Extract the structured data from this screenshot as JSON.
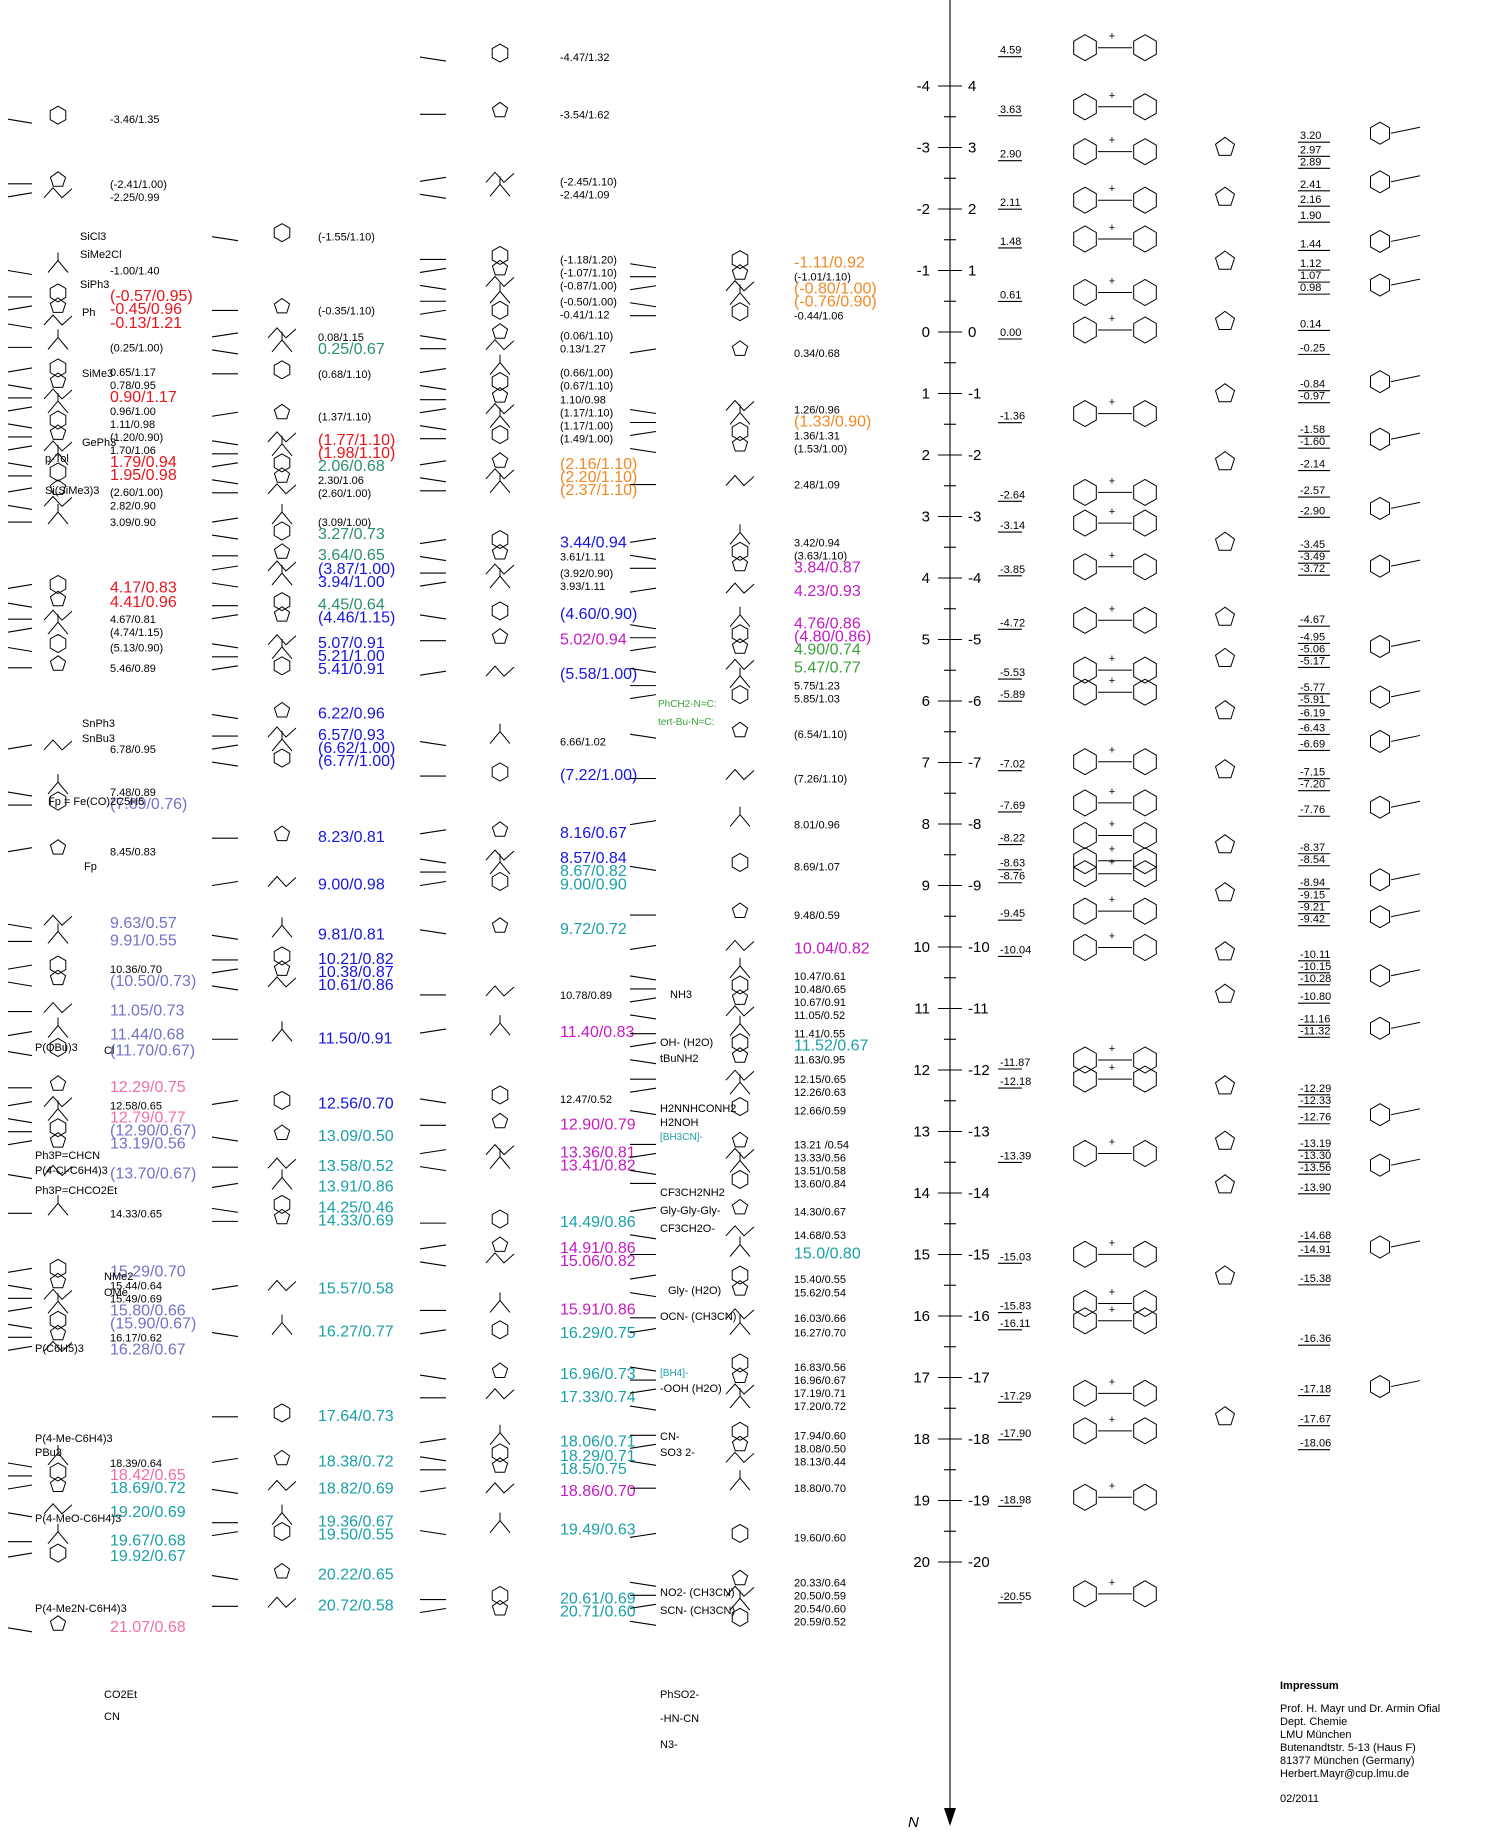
{
  "axes": {
    "n_label": "N",
    "n_ticks": [
      "-4",
      "-3",
      "-2",
      "-1",
      "0",
      "1",
      "2",
      "3",
      "4",
      "5",
      "6",
      "7",
      "8",
      "9",
      "10",
      "11",
      "12",
      "13",
      "14",
      "15",
      "16",
      "17",
      "18",
      "19",
      "20"
    ],
    "e_ticks": [
      "4",
      "3",
      "2",
      "1",
      "0",
      "-1",
      "-2",
      "-3",
      "-4",
      "-5",
      "-6",
      "-7",
      "-8",
      "-9",
      "-10",
      "-11",
      "-12",
      "-13",
      "-14",
      "-15",
      "-16",
      "-17",
      "-18",
      "-19",
      "-20"
    ]
  },
  "col1": [
    {
      "v": "-3.46/1.35",
      "c": "t"
    },
    {
      "v": "(-2.41/1.00)",
      "c": "t"
    },
    {
      "v": "-2.25/0.99",
      "c": "t"
    },
    {
      "v": "-1.00/1.40",
      "c": "t"
    },
    {
      "v": "(-0.57/0.95)",
      "c": "red"
    },
    {
      "v": "-0.45/0.96",
      "c": "red"
    },
    {
      "v": "-0.13/1.21",
      "c": "red"
    },
    {
      "v": "(0.25/1.00)",
      "c": "t"
    },
    {
      "v": "0.65/1.17",
      "c": "t"
    },
    {
      "v": "0.78/0.95",
      "c": "t"
    },
    {
      "v": "0.90/1.17",
      "c": "red"
    },
    {
      "v": "0.96/1.00",
      "c": "t"
    },
    {
      "v": "1.11/0.98",
      "c": "t"
    },
    {
      "v": "(1.20/0.90)",
      "c": "t"
    },
    {
      "v": "1.70/1.06",
      "c": "t"
    },
    {
      "v": "1.79/0.94",
      "c": "red"
    },
    {
      "v": "1.95/0.98",
      "c": "red"
    },
    {
      "v": "(2.60/1.00)",
      "c": "t"
    },
    {
      "v": "2.82/0.90",
      "c": "t"
    },
    {
      "v": "3.09/0.90",
      "c": "t"
    },
    {
      "v": "4.17/0.83",
      "c": "red"
    },
    {
      "v": "4.41/0.96",
      "c": "red"
    },
    {
      "v": "4.67/0.81",
      "c": "t"
    },
    {
      "v": "(4.74/1.15)",
      "c": "t"
    },
    {
      "v": "(5.13/0.90)",
      "c": "t"
    },
    {
      "v": "5.46/0.89",
      "c": "t"
    },
    {
      "v": "6.78/0.95",
      "c": "t"
    },
    {
      "v": "7.48/0.89",
      "c": "t"
    },
    {
      "v": "(7.69/0.76)",
      "c": "lav"
    },
    {
      "v": "8.45/0.83",
      "c": "t"
    },
    {
      "v": "9.63/0.57",
      "c": "lav"
    },
    {
      "v": "9.91/0.55",
      "c": "lav"
    },
    {
      "v": "10.36/0.70",
      "c": "t"
    },
    {
      "v": "(10.50/0.73)",
      "c": "lav"
    },
    {
      "v": "11.05/0.73",
      "c": "lav"
    },
    {
      "v": "11.44/0.68",
      "c": "lav"
    },
    {
      "v": "(11.70/0.67)",
      "c": "lav"
    },
    {
      "v": "12.29/0.75",
      "c": "pnk"
    },
    {
      "v": "12.58/0.65",
      "c": "t"
    },
    {
      "v": "12.79/0.77",
      "c": "pnk"
    },
    {
      "v": "(12.90/0.67)",
      "c": "lav"
    },
    {
      "v": "13.19/0.56",
      "c": "lav"
    },
    {
      "v": "(13.70/0.67)",
      "c": "lav"
    },
    {
      "v": "14.33/0.65",
      "c": "t"
    },
    {
      "v": "15.29/0.70",
      "c": "lav"
    },
    {
      "v": "15.44/0.64",
      "c": "t"
    },
    {
      "v": "15.49/0.69",
      "c": "t"
    },
    {
      "v": "15.80/0.66",
      "c": "lav"
    },
    {
      "v": "(15.90/0.67)",
      "c": "lav"
    },
    {
      "v": "16.17/0.62",
      "c": "t"
    },
    {
      "v": "16.28/0.67",
      "c": "lav"
    },
    {
      "v": "18.39/0.64",
      "c": "t"
    },
    {
      "v": "18.42/0.65",
      "c": "pnk"
    },
    {
      "v": "18.69/0.72",
      "c": "tea"
    },
    {
      "v": "19.20/0.69",
      "c": "tea"
    },
    {
      "v": "19.67/0.68",
      "c": "tea"
    },
    {
      "v": "19.92/0.67",
      "c": "tea"
    },
    {
      "v": "21.07/0.68",
      "c": "pnk"
    }
  ],
  "col1_labels": [
    "P(OBu)3",
    "Ph3P=CHCN",
    "P(4-Cl-C6H4)3",
    "Ph3P=CHCO2Et",
    "P(C6H5)3",
    "P(4-Me-C6H4)3",
    "PBu3",
    "P(4-MeO-C6H4)3",
    "P(4-Me2N-C6H4)3",
    "Fp = Fe(CO)2C5H5",
    "SiCl3",
    "SiMe2Cl",
    "SiPh3",
    "Ph",
    "SiMe3",
    "GePh3",
    "p-Tol",
    "Si(SiMe3)3",
    "SnPh3",
    "SnBu3",
    "Fp",
    "Cl",
    "NMe2",
    "OMe",
    "CN",
    "CO2Et"
  ],
  "col2": [
    {
      "v": "(-1.55/1.10)",
      "c": "t"
    },
    {
      "v": "(-0.35/1.10)",
      "c": "t"
    },
    {
      "v": "0.08/1.15",
      "c": "t"
    },
    {
      "v": "0.25/0.67",
      "c": "gtl"
    },
    {
      "v": "(0.68/1.10)",
      "c": "t"
    },
    {
      "v": "(1.37/1.10)",
      "c": "t"
    },
    {
      "v": "(1.77/1.10)",
      "c": "red"
    },
    {
      "v": "(1.98/1.10)",
      "c": "red"
    },
    {
      "v": "2.06/0.68",
      "c": "gtl"
    },
    {
      "v": "2.30/1.06",
      "c": "t"
    },
    {
      "v": "(2.60/1.00)",
      "c": "t"
    },
    {
      "v": "(3.09/1.00)",
      "c": "t"
    },
    {
      "v": "3.27/0.73",
      "c": "gtl"
    },
    {
      "v": "3.64/0.65",
      "c": "gtl"
    },
    {
      "v": "(3.87/1.00)",
      "c": "blu"
    },
    {
      "v": "3.94/1.00",
      "c": "blu"
    },
    {
      "v": "4.45/0.64",
      "c": "gtl"
    },
    {
      "v": "(4.46/1.15)",
      "c": "blu"
    },
    {
      "v": "5.07/0.91",
      "c": "blu"
    },
    {
      "v": "5.21/1.00",
      "c": "blu"
    },
    {
      "v": "5.41/0.91",
      "c": "blu"
    },
    {
      "v": "6.22/0.96",
      "c": "blu"
    },
    {
      "v": "6.57/0.93",
      "c": "blu"
    },
    {
      "v": "(6.62/1.00)",
      "c": "blu"
    },
    {
      "v": "(6.77/1.00)",
      "c": "blu"
    },
    {
      "v": "8.23/0.81",
      "c": "blu"
    },
    {
      "v": "9.00/0.98",
      "c": "blu"
    },
    {
      "v": "9.81/0.81",
      "c": "blu"
    },
    {
      "v": "10.21/0.82",
      "c": "blu"
    },
    {
      "v": "10.38/0.87",
      "c": "blu"
    },
    {
      "v": "10.61/0.86",
      "c": "blu"
    },
    {
      "v": "11.50/0.91",
      "c": "blu"
    },
    {
      "v": "12.56/0.70",
      "c": "blu"
    },
    {
      "v": "13.09/0.50",
      "c": "tea"
    },
    {
      "v": "13.58/0.52",
      "c": "tea"
    },
    {
      "v": "13.91/0.86",
      "c": "tea"
    },
    {
      "v": "14.25/0.46",
      "c": "tea"
    },
    {
      "v": "14.33/0.69",
      "c": "tea"
    },
    {
      "v": "15.57/0.58",
      "c": "tea"
    },
    {
      "v": "16.27/0.77",
      "c": "tea"
    },
    {
      "v": "17.64/0.73",
      "c": "tea"
    },
    {
      "v": "18.38/0.72",
      "c": "tea"
    },
    {
      "v": "18.82/0.69",
      "c": "tea"
    },
    {
      "v": "19.36/0.67",
      "c": "tea"
    },
    {
      "v": "19.50/0.55",
      "c": "tea"
    },
    {
      "v": "20.22/0.65",
      "c": "tea"
    },
    {
      "v": "20.72/0.58",
      "c": "tea"
    }
  ],
  "col3": [
    {
      "v": "-4.47/1.32",
      "c": "t"
    },
    {
      "v": "-3.54/1.62",
      "c": "t"
    },
    {
      "v": "(-2.45/1.10)",
      "c": "t"
    },
    {
      "v": "-2.44/1.09",
      "c": "t"
    },
    {
      "v": "(-1.18/1.20)",
      "c": "t"
    },
    {
      "v": "(-1.07/1.10)",
      "c": "t"
    },
    {
      "v": "(-0.87/1.00)",
      "c": "t"
    },
    {
      "v": "(-0.50/1.00)",
      "c": "t"
    },
    {
      "v": "-0.41/1.12",
      "c": "t"
    },
    {
      "v": "(0.06/1.10)",
      "c": "t"
    },
    {
      "v": "0.13/1.27",
      "c": "t"
    },
    {
      "v": "(0.66/1.00)",
      "c": "t"
    },
    {
      "v": "(0.67/1.10)",
      "c": "t"
    },
    {
      "v": "1.10/0.98",
      "c": "t"
    },
    {
      "v": "(1.17/1.10)",
      "c": "t"
    },
    {
      "v": "(1.17/1.00)",
      "c": "t"
    },
    {
      "v": "(1.49/1.00)",
      "c": "t"
    },
    {
      "v": "(2.16/1.10)",
      "c": "ora"
    },
    {
      "v": "(2.20/1.10)",
      "c": "ora"
    },
    {
      "v": "(2.37/1.10)",
      "c": "ora"
    },
    {
      "v": "3.44/0.94",
      "c": "blu"
    },
    {
      "v": "3.61/1.11",
      "c": "t"
    },
    {
      "v": "(3.92/0.90)",
      "c": "t"
    },
    {
      "v": "3.93/1.11",
      "c": "t"
    },
    {
      "v": "(4.60/0.90)",
      "c": "blu"
    },
    {
      "v": "5.02/0.94",
      "c": "mag"
    },
    {
      "v": "(5.58/1.00)",
      "c": "blu"
    },
    {
      "v": "6.66/1.02",
      "c": "t"
    },
    {
      "v": "(7.22/1.00)",
      "c": "blu"
    },
    {
      "v": "8.16/0.67",
      "c": "blu"
    },
    {
      "v": "8.57/0.84",
      "c": "blu"
    },
    {
      "v": "8.67/0.82",
      "c": "tea"
    },
    {
      "v": "9.00/0.90",
      "c": "tea"
    },
    {
      "v": "9.72/0.72",
      "c": "tea"
    },
    {
      "v": "10.78/0.89",
      "c": "t"
    },
    {
      "v": "11.40/0.83",
      "c": "mag"
    },
    {
      "v": "12.47/0.52",
      "c": "t"
    },
    {
      "v": "12.90/0.79",
      "c": "mag"
    },
    {
      "v": "13.36/0.81",
      "c": "mag"
    },
    {
      "v": "13.41/0.82",
      "c": "mag"
    },
    {
      "v": "14.49/0.86",
      "c": "tea"
    },
    {
      "v": "14.91/0.86",
      "c": "mag"
    },
    {
      "v": "15.06/0.82",
      "c": "mag"
    },
    {
      "v": "15.91/0.86",
      "c": "mag"
    },
    {
      "v": "16.29/0.75",
      "c": "tea"
    },
    {
      "v": "16.96/0.73",
      "c": "tea"
    },
    {
      "v": "17.33/0.74",
      "c": "tea"
    },
    {
      "v": "18.06/0.71",
      "c": "tea"
    },
    {
      "v": "18.29/0.71",
      "c": "tea"
    },
    {
      "v": "18.5/0.75",
      "c": "tea"
    },
    {
      "v": "18.86/0.70",
      "c": "mag"
    },
    {
      "v": "19.49/0.63",
      "c": "tea"
    },
    {
      "v": "20.61/0.69",
      "c": "tea"
    },
    {
      "v": "20.71/0.60",
      "c": "tea"
    }
  ],
  "col4": [
    {
      "v": "-1.11/0.92",
      "c": "ora"
    },
    {
      "v": "(-1.01/1.10)",
      "c": "t"
    },
    {
      "v": "(-0.80/1.00)",
      "c": "ora"
    },
    {
      "v": "(-0.76/0.90)",
      "c": "ora"
    },
    {
      "v": "-0.44/1.06",
      "c": "t"
    },
    {
      "v": "0.34/0.68",
      "c": "t"
    },
    {
      "v": "1.26/0.96",
      "c": "t"
    },
    {
      "v": "(1.33/0.90)",
      "c": "ora"
    },
    {
      "v": "1.36/1.31",
      "c": "t"
    },
    {
      "v": "(1.53/1.00)",
      "c": "t"
    },
    {
      "v": "2.48/1.09",
      "c": "t"
    },
    {
      "v": "3.42/0.94",
      "c": "t"
    },
    {
      "v": "(3.63/1.10)",
      "c": "t"
    },
    {
      "v": "3.84/0.87",
      "c": "mag"
    },
    {
      "v": "4.23/0.93",
      "c": "mag"
    },
    {
      "v": "4.76/0.86",
      "c": "mag"
    },
    {
      "v": "(4.80/0.86)",
      "c": "mag"
    },
    {
      "v": "4.90/0.74",
      "c": "grn"
    },
    {
      "v": "5.47/0.77",
      "c": "grn"
    },
    {
      "v": "5.75/1.23",
      "c": "t"
    },
    {
      "v": "5.85/1.03",
      "c": "t"
    },
    {
      "v": "(6.54/1.10)",
      "c": "t"
    },
    {
      "v": "(7.26/1.10)",
      "c": "t"
    },
    {
      "v": "8.01/0.96",
      "c": "t"
    },
    {
      "v": "8.69/1.07",
      "c": "t"
    },
    {
      "v": "9.48/0.59",
      "c": "t"
    },
    {
      "v": "10.04/0.82",
      "c": "mag"
    },
    {
      "v": "10.47/0.61",
      "c": "t"
    },
    {
      "v": "10.48/0.65",
      "c": "t"
    },
    {
      "v": "10.67/0.91",
      "c": "t"
    },
    {
      "v": "11.05/0.52",
      "c": "t"
    },
    {
      "v": "11.41/0.55",
      "c": "t"
    },
    {
      "v": "11.52/0.67",
      "c": "tea"
    },
    {
      "v": "11.63/0.95",
      "c": "t"
    },
    {
      "v": "12.15/0.65",
      "c": "t"
    },
    {
      "v": "12.26/0.63",
      "c": "t"
    },
    {
      "v": "12.66/0.59",
      "c": "t"
    },
    {
      "v": "13.21 /0.54",
      "c": "t"
    },
    {
      "v": "13.33/0.56",
      "c": "t"
    },
    {
      "v": "13.51/0.58",
      "c": "t"
    },
    {
      "v": "13.60/0.84",
      "c": "t"
    },
    {
      "v": "14.30/0.67",
      "c": "t"
    },
    {
      "v": "14.68/0.53",
      "c": "t"
    },
    {
      "v": "15.0/0.80",
      "c": "tea"
    },
    {
      "v": "15.40/0.55",
      "c": "t"
    },
    {
      "v": "15.62/0.54",
      "c": "t"
    },
    {
      "v": "16.03/0.66",
      "c": "t"
    },
    {
      "v": "16.27/0.70",
      "c": "t"
    },
    {
      "v": "16.83/0.56",
      "c": "t"
    },
    {
      "v": "16.96/0.67",
      "c": "t"
    },
    {
      "v": "17.19/0.71",
      "c": "t"
    },
    {
      "v": "17.20/0.72",
      "c": "t"
    },
    {
      "v": "17.94/0.60",
      "c": "t"
    },
    {
      "v": "18.08/0.50",
      "c": "t"
    },
    {
      "v": "18.13/0.44",
      "c": "t"
    },
    {
      "v": "18.80/0.70",
      "c": "t"
    },
    {
      "v": "19.60/0.60",
      "c": "t"
    },
    {
      "v": "20.33/0.64",
      "c": "t"
    },
    {
      "v": "20.50/0.59",
      "c": "t"
    },
    {
      "v": "20.54/0.60",
      "c": "t"
    },
    {
      "v": "20.59/0.52",
      "c": "t"
    }
  ],
  "col4_labels": [
    "NH3",
    "OH- (H2O)",
    "tBuNH2",
    "H2NNHCONH2",
    "H2NOH",
    "[BH3CN]-",
    "CF3CH2NH2",
    "Gly-Gly-Gly-",
    "CF3CH2O-",
    "Gly- (H2O)",
    "OCN- (CH3CN)",
    "[BH4]-",
    "-OOH (H2O)",
    "CN-",
    "SO3 2-",
    "NO2- (CH3CN)",
    "SCN- (CH3CN)",
    "PhSO2-",
    "-HN-CN",
    "N3-",
    "PhCH2-N=C:",
    "tert-Bu-N=C:"
  ],
  "electrophiles_left": [
    "4.59",
    "3.63",
    "2.90",
    "2.11",
    "1.48",
    "0.61",
    "0.00",
    "-1.36",
    "-2.64",
    "-3.14",
    "-3.85",
    "-4.72",
    "-5.53",
    "-5.89",
    "-7.02",
    "-7.69",
    "-8.22",
    "-8.63",
    "-8.76",
    "-9.45",
    "-10.04",
    "-11.87",
    "-12.18",
    "-13.39",
    "-15.03",
    "-15.83",
    "-16.11",
    "-17.29",
    "-17.90",
    "-18.98",
    "-20.55"
  ],
  "electrophiles_right": [
    "3.20",
    "2.97",
    "2.89",
    "2.41",
    "2.16",
    "1.90",
    "1.44",
    "1.12",
    "1.07",
    "0.98",
    "0.14",
    "-0.25",
    "-0.84",
    "-0.97",
    "-1.58",
    "-1.60",
    "-2.14",
    "-2.57",
    "-2.90",
    "-3.45",
    "-3.49",
    "-3.72",
    "-4.67",
    "-4.95",
    "-5.06",
    "-5.17",
    "-5.77",
    "-5.91",
    "-6.19",
    "-6.43",
    "-6.69",
    "-7.15",
    "-7.20",
    "-7.76",
    "-8.37",
    "-8.54",
    "-8.94",
    "-9.15",
    "-9.21",
    "-9.42",
    "-10.11",
    "-10.15",
    "-10.28",
    "-10.80",
    "-11.16",
    "-11.32",
    "-12.29",
    "-12.33",
    "-12.76",
    "-13.19",
    "-13.30",
    "-13.56",
    "-13.90",
    "-14.68",
    "-14.91",
    "-15.38",
    "-16.36",
    "-17.18",
    "-17.67",
    "-18.06"
  ],
  "impressum": {
    "heading": "Impressum",
    "lines": [
      "Prof. H. Mayr und Dr. Armin Ofial",
      "Dept. Chemie",
      "LMU München",
      "Butenandtstr. 5-13 (Haus F)",
      "81377 München (Germany)",
      "Herbert.Mayr@cup.lmu.de"
    ],
    "date": "02/2011"
  },
  "colors": {
    "red": "#e8141b",
    "orange": "#f08a24",
    "blue": "#1515e0",
    "teal": "#1aa0a8",
    "magenta": "#c41bc4",
    "lavender": "#6f72c8",
    "pink": "#f06eaa",
    "green": "#3aa13a"
  }
}
